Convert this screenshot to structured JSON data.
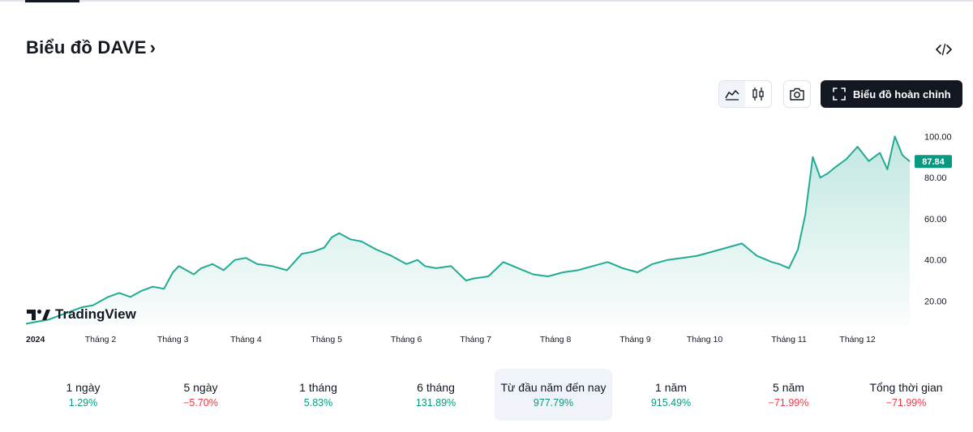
{
  "page": {
    "title": "Biểu đồ DAVE",
    "title_chevron": "›",
    "embed_icon": "code-icon",
    "full_chart_label": "Biểu đồ hoàn chỉnh",
    "logo_text": "TradingView"
  },
  "toolbar": {
    "line_chart_icon": "area-chart-icon",
    "candle_chart_icon": "candlestick-icon",
    "snapshot_icon": "camera-icon",
    "fullscreen_icon": "fullscreen-icon",
    "active_style": "area"
  },
  "colors": {
    "line": "#22ab94",
    "fill_top": "#22ab94",
    "price_tag": "#089981",
    "positive": "#089981",
    "negative": "#f23645"
  },
  "stats": [
    {
      "label": "1 ngày",
      "value": "1.29%",
      "sign": "pos"
    },
    {
      "label": "5 ngày",
      "value": "−5.70%",
      "sign": "neg"
    },
    {
      "label": "1 tháng",
      "value": "5.83%",
      "sign": "pos"
    },
    {
      "label": "6 tháng",
      "value": "131.89%",
      "sign": "pos"
    },
    {
      "label": "Từ đầu năm đến nay",
      "value": "977.79%",
      "sign": "pos",
      "active": true
    },
    {
      "label": "1 năm",
      "value": "915.49%",
      "sign": "pos"
    },
    {
      "label": "5 năm",
      "value": "−71.99%",
      "sign": "neg"
    },
    {
      "label": "Tổng thời gian",
      "value": "−71.99%",
      "sign": "neg"
    }
  ],
  "chart_data": {
    "type": "area",
    "title": "",
    "xlabel": "",
    "ylabel": "",
    "ylim": [
      8,
      108
    ],
    "y_ticks": [
      "100.00",
      "80.00",
      "60.00",
      "40.00",
      "20.00"
    ],
    "y_tick_values": [
      100,
      80,
      60,
      40,
      20
    ],
    "x_tick_labels": [
      "2024",
      "Tháng 2",
      "Tháng 3",
      "Tháng 4",
      "Tháng 5",
      "Tháng 6",
      "Tháng 7",
      "Tháng 8",
      "Tháng 9",
      "Tháng 10",
      "Tháng 11",
      "Tháng 12"
    ],
    "x_tick_positions": [
      0,
      1.0,
      1.97,
      2.95,
      4.03,
      5.1,
      6.03,
      7.1,
      8.17,
      9.1,
      10.23,
      11.15
    ],
    "x_range": [
      0,
      11.85
    ],
    "last_price": "87.84",
    "last_value": 87.84,
    "grid": false,
    "series": [
      {
        "x": [
          0,
          0.15,
          0.3,
          0.45,
          0.6,
          0.75,
          0.9,
          1.0,
          1.1,
          1.25,
          1.4,
          1.55,
          1.7,
          1.85,
          1.97,
          2.05,
          2.15,
          2.25,
          2.35,
          2.5,
          2.65,
          2.8,
          2.95,
          3.1,
          3.3,
          3.5,
          3.7,
          3.85,
          4.0,
          4.1,
          4.2,
          4.35,
          4.5,
          4.7,
          4.9,
          5.1,
          5.25,
          5.35,
          5.5,
          5.7,
          5.9,
          6.0,
          6.2,
          6.4,
          6.6,
          6.8,
          7.0,
          7.2,
          7.4,
          7.6,
          7.8,
          8.0,
          8.2,
          8.4,
          8.6,
          8.8,
          9.0,
          9.2,
          9.4,
          9.6,
          9.8,
          10.0,
          10.1,
          10.23,
          10.35,
          10.45,
          10.55,
          10.65,
          10.75,
          10.85,
          11.0,
          11.15,
          11.3,
          11.45,
          11.55,
          11.65,
          11.75,
          11.85
        ],
        "values": [
          9,
          10,
          11,
          13,
          15,
          17,
          18,
          20,
          22,
          24,
          22,
          25,
          27,
          26,
          34,
          37,
          35,
          33,
          36,
          38,
          35,
          40,
          41,
          38,
          37,
          35,
          43,
          44,
          46,
          51,
          53,
          50,
          49,
          45,
          42,
          38,
          40,
          37,
          36,
          37,
          30,
          31,
          32,
          39,
          36,
          33,
          32,
          34,
          35,
          37,
          39,
          36,
          34,
          38,
          40,
          41,
          42,
          44,
          46,
          48,
          42,
          39,
          38,
          36,
          45,
          62,
          90,
          80,
          82,
          85,
          89,
          95,
          88,
          92,
          84,
          100,
          91,
          87.84
        ]
      }
    ]
  }
}
